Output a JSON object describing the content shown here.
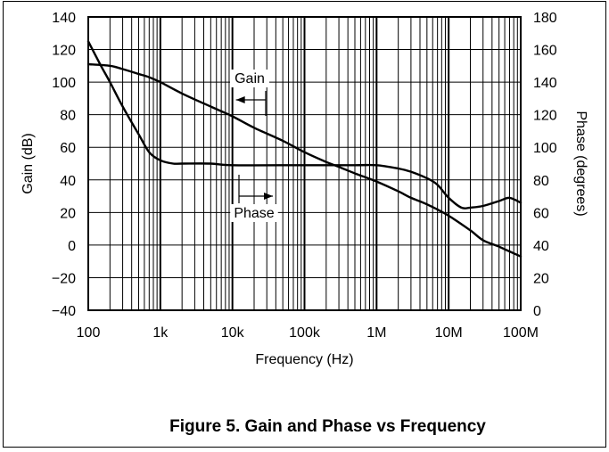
{
  "caption": "Figure 5. Gain and Phase vs Frequency",
  "chart_data": {
    "type": "line",
    "xlabel": "Frequency (Hz)",
    "ylabel": "Gain (dB)",
    "y2label": "Phase (degrees)",
    "x_scale": "log",
    "xlim": [
      100,
      100000000
    ],
    "ylim": [
      -40,
      140
    ],
    "y2lim": [
      0,
      180
    ],
    "grid": true,
    "x_ticks": [
      {
        "value": 100,
        "label": "100"
      },
      {
        "value": 1000,
        "label": "1k"
      },
      {
        "value": 10000,
        "label": "10k"
      },
      {
        "value": 100000,
        "label": "100k"
      },
      {
        "value": 1000000,
        "label": "1M"
      },
      {
        "value": 10000000,
        "label": "10M"
      },
      {
        "value": 100000000,
        "label": "100M"
      }
    ],
    "y_ticks": [
      {
        "value": 140,
        "label": "140"
      },
      {
        "value": 120,
        "label": "120"
      },
      {
        "value": 100,
        "label": "100"
      },
      {
        "value": 80,
        "label": "80"
      },
      {
        "value": 60,
        "label": "60"
      },
      {
        "value": 40,
        "label": "40"
      },
      {
        "value": 20,
        "label": "20"
      },
      {
        "value": 0,
        "label": "0"
      },
      {
        "value": -20,
        "label": "−20"
      },
      {
        "value": -40,
        "label": "−40"
      }
    ],
    "y2_ticks": [
      {
        "value": 180,
        "label": "180"
      },
      {
        "value": 160,
        "label": "160"
      },
      {
        "value": 140,
        "label": "140"
      },
      {
        "value": 120,
        "label": "120"
      },
      {
        "value": 100,
        "label": "100"
      },
      {
        "value": 80,
        "label": "80"
      },
      {
        "value": 60,
        "label": "60"
      },
      {
        "value": 40,
        "label": "40"
      },
      {
        "value": 20,
        "label": "20"
      },
      {
        "value": 0,
        "label": "0"
      }
    ],
    "series": [
      {
        "name": "Gain",
        "axis": "left",
        "x": [
          100,
          200,
          300,
          500,
          700,
          1000,
          2000,
          5000,
          10000,
          20000,
          50000,
          100000,
          200000,
          300000,
          500000,
          1000000,
          2000000,
          3000000,
          5000000,
          10000000,
          20000000,
          30000000,
          50000000,
          100000000
        ],
        "values": [
          111,
          110,
          108,
          105,
          103,
          100,
          93,
          85,
          79,
          72,
          64,
          57,
          51,
          48,
          44,
          39,
          33,
          29,
          25,
          18,
          9,
          3,
          -1,
          -7
        ]
      },
      {
        "name": "Phase",
        "axis": "right",
        "x": [
          100,
          150,
          200,
          300,
          500,
          700,
          1000,
          1500,
          2000,
          5000,
          10000,
          100000,
          500000,
          1000000,
          2000000,
          3000000,
          5000000,
          7000000,
          10000000,
          15000000,
          20000000,
          30000000,
          50000000,
          70000000,
          100000000
        ],
        "values": [
          165,
          150,
          140,
          125,
          108,
          97,
          92,
          90,
          90,
          90,
          89,
          89,
          89,
          89,
          87,
          85,
          81,
          77,
          69,
          63,
          63,
          64,
          67,
          69,
          66
        ]
      }
    ],
    "annotations": [
      {
        "text": "Gain",
        "series": "Gain"
      },
      {
        "text": "Phase",
        "series": "Phase"
      }
    ]
  }
}
